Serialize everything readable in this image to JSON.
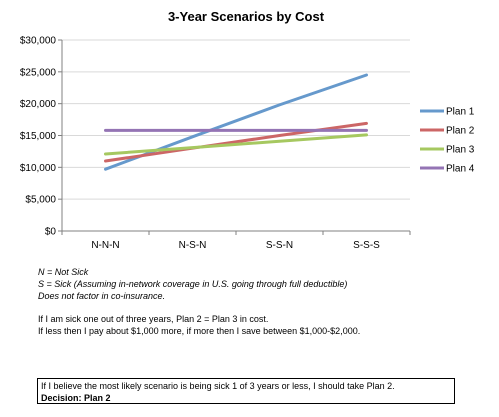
{
  "chart_data": {
    "type": "line",
    "title": "3-Year Scenarios by Cost",
    "categories": [
      "N-N-N",
      "N-S-N",
      "S-S-N",
      "S-S-S"
    ],
    "ylim": [
      0,
      30000
    ],
    "yticks": [
      "$0",
      "$5,000",
      "$10,000",
      "$15,000",
      "$20,000",
      "$25,000",
      "$30,000"
    ],
    "ytick_values": [
      0,
      5000,
      10000,
      15000,
      20000,
      25000,
      30000
    ],
    "grid": true,
    "legend_position": "right",
    "series": [
      {
        "name": "Plan 1",
        "color": "#6699cc",
        "values": [
          9700,
          14800,
          19800,
          24500
        ]
      },
      {
        "name": "Plan 2",
        "color": "#cc6666",
        "values": [
          11000,
          13000,
          15000,
          16900
        ]
      },
      {
        "name": "Plan 3",
        "color": "#a6c860",
        "values": [
          12100,
          13100,
          14100,
          15100
        ]
      },
      {
        "name": "Plan 4",
        "color": "#9474b4",
        "values": [
          15800,
          15800,
          15800,
          15800
        ]
      }
    ]
  },
  "notes": {
    "line1": "N =  Not Sick",
    "line2": "S = Sick (Assuming in-network coverage in U.S. going through full deductible)",
    "line3": "Does not factor in co-insurance.",
    "line4": "If I am sick one out of three years, Plan 2 = Plan 3 in cost.",
    "line5": "If less then I pay about $1,000 more, if more then I save between $1,000-$2,000."
  },
  "decision": {
    "line1": "If I believe the most likely scenario is being sick 1 of 3 years or less, I should take Plan 2.",
    "line2": "Decision: Plan 2"
  }
}
